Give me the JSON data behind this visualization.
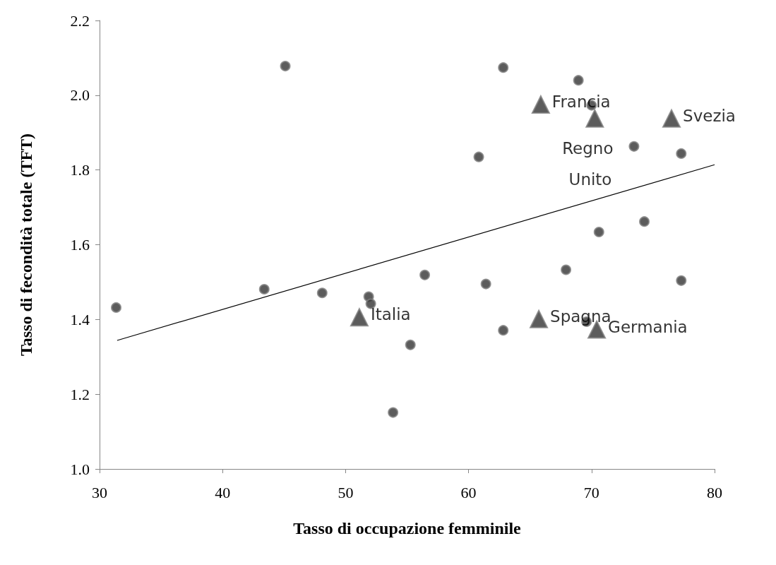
{
  "chart_data": {
    "type": "scatter",
    "xlabel": "Tasso di occupazione femminile",
    "ylabel": "Tasso di fecondità totale (TFT)",
    "xlim": [
      30,
      80
    ],
    "xticks": [
      30,
      40,
      50,
      60,
      70,
      80
    ],
    "ylim": [
      1.0,
      2.2
    ],
    "yticks": [
      {
        "value": 1.0,
        "label": "1.0"
      },
      1.2,
      1.4,
      1.6,
      1.8,
      {
        "value": 2.0,
        "label": "2.0"
      },
      2.2
    ],
    "grid": false,
    "series": [
      {
        "marker": "circle",
        "color": "#333333",
        "x": [
          31.35,
          43.39,
          45.1,
          48.1,
          51.88,
          52.05,
          55.27,
          53.86,
          62.82,
          68.93,
          70.0,
          73.45,
          77.29,
          60.83,
          74.29,
          70.6,
          67.92,
          56.44,
          61.41,
          77.29,
          69.59,
          62.82
        ],
        "values": [
          1.432,
          1.481,
          2.078,
          1.471,
          1.461,
          1.442,
          1.332,
          1.151,
          2.074,
          2.04,
          1.973,
          1.863,
          1.844,
          1.835,
          1.662,
          1.634,
          1.533,
          1.519,
          1.495,
          1.504,
          1.394,
          1.371
        ]
      },
      {
        "marker": "triangle",
        "color": "#333333",
        "x": [
          51.12,
          65.87,
          70.26,
          76.5,
          65.71,
          70.42
        ],
        "values": [
          1.406,
          1.975,
          1.938,
          1.938,
          1.401,
          1.373
        ]
      },
      {
        "type": "line",
        "marker": "none",
        "color": "#000000",
        "line_style": "solid",
        "x": [
          31.43,
          80
        ],
        "values": [
          1.344,
          1.814
        ]
      }
    ],
    "annotations": [
      {
        "text": "Italia",
        "x": 51.12,
        "y": 1.406
      },
      {
        "text": "Francia",
        "x": 65.87,
        "y": 1.975
      },
      {
        "text": "Regno Unito",
        "x": 70.26,
        "y": 1.938
      },
      {
        "text": "Svezia",
        "x": 76.5,
        "y": 1.938
      },
      {
        "text": "Spagna",
        "x": 65.71,
        "y": 1.401
      },
      {
        "text": "Germania",
        "x": 70.42,
        "y": 1.373
      }
    ]
  }
}
